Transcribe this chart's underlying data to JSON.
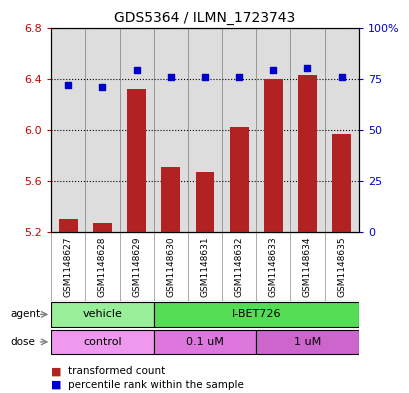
{
  "title": "GDS5364 / ILMN_1723743",
  "samples": [
    "GSM1148627",
    "GSM1148628",
    "GSM1148629",
    "GSM1148630",
    "GSM1148631",
    "GSM1148632",
    "GSM1148633",
    "GSM1148634",
    "GSM1148635"
  ],
  "transformed_counts": [
    5.3,
    5.27,
    6.32,
    5.71,
    5.67,
    6.02,
    6.4,
    6.43,
    5.97
  ],
  "percentile_ranks": [
    72,
    71,
    79,
    76,
    76,
    76,
    79,
    80,
    76
  ],
  "ylim_left": [
    5.2,
    6.8
  ],
  "ylim_right": [
    0,
    100
  ],
  "yticks_left": [
    5.2,
    5.6,
    6.0,
    6.4,
    6.8
  ],
  "yticks_right": [
    0,
    25,
    50,
    75,
    100
  ],
  "ytick_labels_right": [
    "0",
    "25",
    "50",
    "75",
    "100%"
  ],
  "bar_color": "#B22222",
  "dot_color": "#0000CC",
  "agent_groups": [
    {
      "label": "vehicle",
      "start": 0,
      "end": 3,
      "color": "#99EE99"
    },
    {
      "label": "I-BET726",
      "start": 3,
      "end": 9,
      "color": "#55DD55"
    }
  ],
  "dose_groups": [
    {
      "label": "control",
      "start": 0,
      "end": 3,
      "color": "#EE99EE"
    },
    {
      "label": "0.1 uM",
      "start": 3,
      "end": 6,
      "color": "#DD77DD"
    },
    {
      "label": "1 uM",
      "start": 6,
      "end": 9,
      "color": "#CC66CC"
    }
  ],
  "legend_bar_label": "transformed count",
  "legend_dot_label": "percentile rank within the sample",
  "tick_color_left": "#CC0000",
  "tick_color_right": "#0000CC",
  "bar_width": 0.55,
  "col_bg_color": "#DDDDDD",
  "col_border_color": "#888888"
}
